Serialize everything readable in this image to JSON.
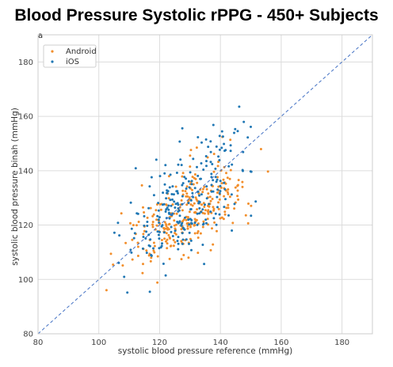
{
  "title": "Blood Pressure Systolic rPPG - 450+ Subjects",
  "panel_label": "a",
  "colors": {
    "android": "#f28e2b",
    "ios": "#1f77b4",
    "grid": "#dcdcdc",
    "identity": "#4472c4"
  },
  "chart_data": {
    "type": "scatter",
    "xlabel": "systolic blood pressure reference (mmHg)",
    "ylabel": "systolic blood pressure binah (mmHg)",
    "xlim": [
      80,
      190
    ],
    "ylim": [
      80,
      190
    ],
    "xticks": [
      80,
      100,
      120,
      140,
      160,
      180
    ],
    "yticks": [
      80,
      100,
      120,
      140,
      160,
      180
    ],
    "grid": true,
    "legend_position": "top-left",
    "identity_line": true,
    "series": [
      {
        "name": "Android",
        "color": "#f28e2b",
        "count": 300,
        "seed": 11,
        "xrange": [
          100,
          158
        ],
        "slope": 0.55,
        "intercept": 54,
        "noise": 7.5
      },
      {
        "name": "iOS",
        "color": "#1f77b4",
        "count": 260,
        "seed": 47,
        "xrange": [
          100,
          158
        ],
        "slope": 0.75,
        "intercept": 32,
        "noise": 10
      }
    ]
  }
}
